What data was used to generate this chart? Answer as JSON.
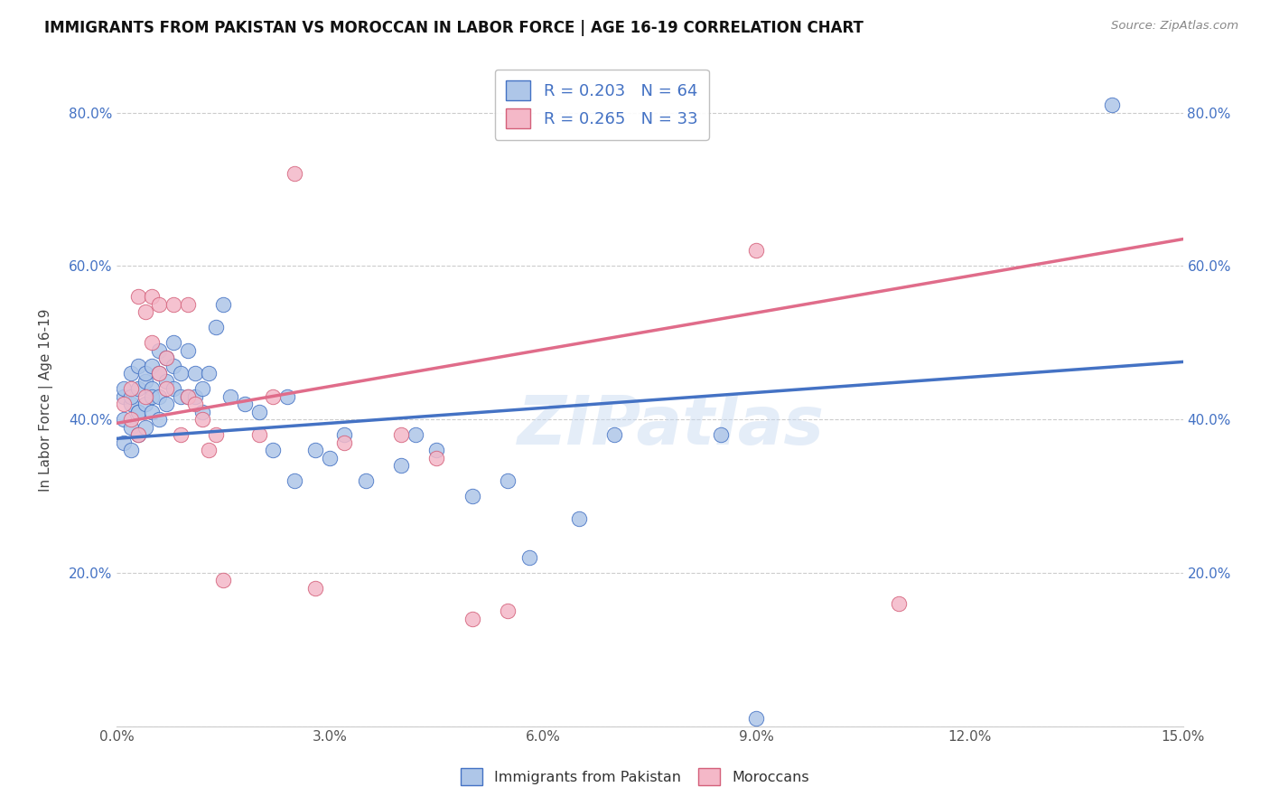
{
  "title": "IMMIGRANTS FROM PAKISTAN VS MOROCCAN IN LABOR FORCE | AGE 16-19 CORRELATION CHART",
  "source": "Source: ZipAtlas.com",
  "ylabel": "In Labor Force | Age 16-19",
  "xlim": [
    0.0,
    0.15
  ],
  "ylim": [
    0.0,
    0.85
  ],
  "xticks": [
    0.0,
    0.03,
    0.06,
    0.09,
    0.12,
    0.15
  ],
  "yticks": [
    0.0,
    0.2,
    0.4,
    0.6,
    0.8
  ],
  "xticklabels": [
    "0.0%",
    "3.0%",
    "6.0%",
    "9.0%",
    "12.0%",
    "15.0%"
  ],
  "yticklabels": [
    "",
    "20.0%",
    "40.0%",
    "60.0%",
    "80.0%"
  ],
  "watermark": "ZIPatlas",
  "blue_color": "#aec6e8",
  "blue_edge_color": "#4472c4",
  "pink_color": "#f4b8c8",
  "pink_edge_color": "#d4607a",
  "line_blue_color": "#4472c4",
  "line_pink_color": "#e06c8a",
  "blue_r": 0.203,
  "blue_n": 64,
  "pink_r": 0.265,
  "pink_n": 33,
  "blue_x": [
    0.001,
    0.001,
    0.001,
    0.001,
    0.002,
    0.002,
    0.002,
    0.002,
    0.002,
    0.003,
    0.003,
    0.003,
    0.003,
    0.003,
    0.004,
    0.004,
    0.004,
    0.004,
    0.005,
    0.005,
    0.005,
    0.005,
    0.006,
    0.006,
    0.006,
    0.006,
    0.007,
    0.007,
    0.007,
    0.008,
    0.008,
    0.008,
    0.009,
    0.009,
    0.01,
    0.01,
    0.011,
    0.011,
    0.012,
    0.012,
    0.013,
    0.014,
    0.015,
    0.016,
    0.018,
    0.02,
    0.022,
    0.024,
    0.025,
    0.028,
    0.03,
    0.032,
    0.035,
    0.04,
    0.042,
    0.045,
    0.05,
    0.055,
    0.058,
    0.065,
    0.07,
    0.085,
    0.09,
    0.14
  ],
  "blue_y": [
    0.43,
    0.4,
    0.37,
    0.44,
    0.42,
    0.39,
    0.36,
    0.46,
    0.43,
    0.41,
    0.38,
    0.44,
    0.47,
    0.41,
    0.45,
    0.42,
    0.39,
    0.46,
    0.44,
    0.41,
    0.47,
    0.43,
    0.46,
    0.49,
    0.43,
    0.4,
    0.48,
    0.45,
    0.42,
    0.47,
    0.44,
    0.5,
    0.46,
    0.43,
    0.49,
    0.43,
    0.46,
    0.43,
    0.44,
    0.41,
    0.46,
    0.52,
    0.55,
    0.43,
    0.42,
    0.41,
    0.36,
    0.43,
    0.32,
    0.36,
    0.35,
    0.38,
    0.32,
    0.34,
    0.38,
    0.36,
    0.3,
    0.32,
    0.22,
    0.27,
    0.38,
    0.38,
    0.01,
    0.81
  ],
  "pink_x": [
    0.001,
    0.002,
    0.002,
    0.003,
    0.003,
    0.004,
    0.004,
    0.005,
    0.005,
    0.006,
    0.006,
    0.007,
    0.007,
    0.008,
    0.009,
    0.01,
    0.01,
    0.011,
    0.012,
    0.013,
    0.014,
    0.015,
    0.02,
    0.022,
    0.025,
    0.028,
    0.032,
    0.04,
    0.045,
    0.05,
    0.055,
    0.09,
    0.11
  ],
  "pink_y": [
    0.42,
    0.4,
    0.44,
    0.38,
    0.56,
    0.54,
    0.43,
    0.56,
    0.5,
    0.46,
    0.55,
    0.48,
    0.44,
    0.55,
    0.38,
    0.55,
    0.43,
    0.42,
    0.4,
    0.36,
    0.38,
    0.19,
    0.38,
    0.43,
    0.72,
    0.18,
    0.37,
    0.38,
    0.35,
    0.14,
    0.15,
    0.62,
    0.16
  ]
}
